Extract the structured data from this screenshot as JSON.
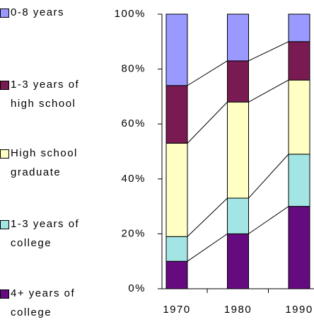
{
  "chart_data": {
    "type": "stacked_bar_100",
    "categories": [
      "1970",
      "1980",
      "1990"
    ],
    "series": [
      {
        "name": "4+ years of college",
        "color": "#660a80",
        "values": [
          10,
          20,
          30
        ]
      },
      {
        "name": "1-3 years of college",
        "color": "#a3e4e4",
        "values": [
          9,
          13,
          19
        ]
      },
      {
        "name": "High school graduate",
        "color": "#ffffc4",
        "values": [
          34,
          35,
          27
        ]
      },
      {
        "name": "1-3 years of high school",
        "color": "#7a1a52",
        "values": [
          21,
          15,
          14
        ]
      },
      {
        "name": "0-8 years",
        "color": "#9999ff",
        "values": [
          26,
          17,
          10
        ]
      }
    ],
    "ylim": [
      0,
      100
    ],
    "yticks": [
      {
        "value": 0,
        "label": "0%"
      },
      {
        "value": 20,
        "label": "20%"
      },
      {
        "value": 40,
        "label": "40%"
      },
      {
        "value": 60,
        "label": "60%"
      },
      {
        "value": 80,
        "label": "80%"
      },
      {
        "value": 100,
        "label": "100%"
      }
    ],
    "series_lines": true,
    "legend": "left"
  }
}
